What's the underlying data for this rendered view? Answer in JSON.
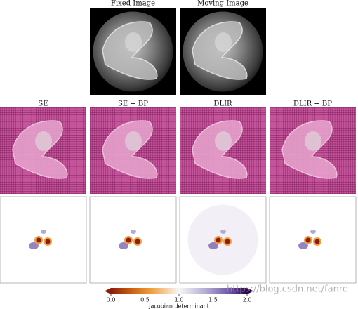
{
  "top_row": {
    "titles": [
      "Fixed Image",
      "Moving Image"
    ]
  },
  "grid_row": {
    "titles": [
      "SE",
      "SE + BP",
      "DLIR",
      "DLIR + BP"
    ]
  },
  "colorbar": {
    "label": "Jacobian determinant",
    "lim": [
      0,
      2
    ],
    "ticks": [
      {
        "value": 0,
        "label": "0.0"
      },
      {
        "value": 0.5,
        "label": "0.5"
      },
      {
        "value": 1,
        "label": "1.0"
      },
      {
        "value": 1.5,
        "label": "1.5"
      },
      {
        "value": 2,
        "label": "2.0"
      }
    ]
  },
  "watermark": "https://blog.csdn.net/fanre"
}
